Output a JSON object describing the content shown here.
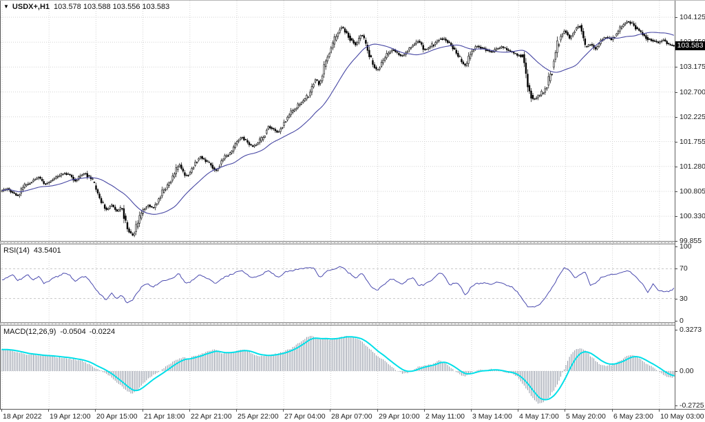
{
  "header": {
    "collapse_arrow": "▼",
    "symbol": "USDX+,H1",
    "ohlc": "103.578 103.588 103.556 103.583"
  },
  "indicators": {
    "rsi": {
      "name": "RSI(14)",
      "value": "43.5401"
    },
    "macd": {
      "name": "MACD(12,26,9)",
      "main_value": "-0.0504",
      "signal_value": "-0.0224"
    }
  },
  "colors": {
    "candle_outline": "#000000",
    "candle_bull_fill": "#ffffff",
    "candle_bear_fill": "#000000",
    "ma_line": "#4646a3",
    "rsi_line": "#4a4aae",
    "macd_histogram": "#8e94a2",
    "macd_signal": "#00dfe8",
    "grid": "#d2d2d2",
    "level_dash": "#c6c6c6",
    "badge_bg": "#000000",
    "badge_text": "#ffffff"
  },
  "chart_data": {
    "type": "candlestick",
    "symbol": "USDX+",
    "timeframe": "H1",
    "grid": "dotted",
    "legend_position": "none",
    "x_ticks": [
      "18 Apr 2022",
      "19 Apr 12:00",
      "20 Apr 15:00",
      "21 Apr 18:00",
      "22 Apr 21:00",
      "25 Apr 22:00",
      "27 Apr 04:00",
      "28 Apr 07:00",
      "29 Apr 10:00",
      "2 May 11:00",
      "3 May 14:00",
      "4 May 17:00",
      "5 May 20:00",
      "6 May 23:00",
      "10 May 03:00"
    ],
    "panels": [
      {
        "id": "price",
        "type": "candlestick",
        "ylim": [
          99.86,
          104.44
        ],
        "y_tick_labels": [
          "104.125",
          "103.650",
          "103.175",
          "102.700",
          "102.225",
          "101.755",
          "101.280",
          "100.805",
          "100.330",
          "99.855"
        ],
        "current_label": "103.583",
        "current_value": 103.583,
        "ma_period": 30,
        "interp_per_point": 3,
        "closes": [
          100.82,
          100.86,
          100.78,
          100.72,
          100.88,
          100.95,
          101.02,
          101.08,
          100.95,
          100.98,
          101.05,
          101.1,
          101.15,
          101.12,
          101.0,
          101.1,
          101.15,
          101.05,
          100.85,
          100.6,
          100.45,
          100.55,
          100.42,
          100.5,
          100.1,
          99.95,
          100.18,
          100.45,
          100.55,
          100.48,
          100.65,
          100.82,
          100.95,
          101.12,
          101.33,
          101.1,
          101.15,
          101.35,
          101.48,
          101.38,
          101.32,
          101.18,
          101.38,
          101.48,
          101.55,
          101.75,
          101.85,
          101.75,
          101.65,
          101.72,
          101.8,
          102.05,
          102.0,
          101.92,
          102.1,
          102.25,
          102.35,
          102.45,
          102.55,
          102.65,
          102.95,
          102.85,
          103.25,
          103.5,
          103.72,
          103.95,
          103.85,
          103.7,
          103.6,
          103.82,
          103.55,
          103.25,
          103.1,
          103.28,
          103.42,
          103.52,
          103.42,
          103.38,
          103.52,
          103.6,
          103.68,
          103.5,
          103.55,
          103.62,
          103.72,
          103.7,
          103.62,
          103.48,
          103.3,
          103.18,
          103.45,
          103.58,
          103.55,
          103.5,
          103.45,
          103.52,
          103.56,
          103.5,
          103.45,
          103.4,
          103.42,
          102.78,
          102.55,
          102.62,
          102.7,
          102.92,
          103.35,
          103.72,
          103.88,
          103.72,
          103.9,
          103.98,
          103.55,
          103.62,
          103.52,
          103.68,
          103.75,
          103.7,
          103.82,
          103.95,
          104.05,
          104.0,
          103.9,
          103.8,
          103.72,
          103.68,
          103.64,
          103.7,
          103.6,
          103.583
        ]
      },
      {
        "id": "rsi",
        "type": "line",
        "ylim": [
          -1.8,
          102.8
        ],
        "y_tick_labels": [
          "100",
          "70",
          "30",
          "0"
        ],
        "levels": [
          70,
          30
        ],
        "current_value": 43.5401,
        "values": [
          55,
          58,
          62,
          54,
          58,
          62,
          55,
          60,
          50,
          53,
          58,
          61,
          64,
          62,
          53,
          58,
          60,
          52,
          42,
          35,
          28,
          38,
          30,
          34,
          24,
          27,
          38,
          47,
          50,
          45,
          50,
          54,
          56,
          58,
          64,
          52,
          51,
          57,
          62,
          58,
          55,
          50,
          56,
          60,
          62,
          66,
          68,
          63,
          58,
          60,
          62,
          68,
          64,
          58,
          64,
          67,
          68,
          70,
          71,
          72,
          70,
          58,
          65,
          68,
          70,
          73,
          68,
          62,
          57,
          65,
          55,
          45,
          40,
          47,
          53,
          57,
          52,
          50,
          56,
          58,
          47,
          49,
          52,
          58,
          65,
          60,
          47,
          52,
          47,
          34,
          45,
          51,
          50,
          51,
          49,
          52,
          51,
          48,
          45,
          38,
          28,
          19,
          18,
          20,
          28,
          38,
          48,
          62,
          71,
          68,
          57,
          62,
          66,
          48,
          51,
          58,
          61,
          62,
          63,
          65,
          68,
          64,
          56,
          50,
          38,
          50,
          41,
          39,
          40,
          43.5
        ]
      },
      {
        "id": "macd",
        "type": "histogram+line",
        "ylim": [
          -0.3,
          0.36
        ],
        "y_tick_labels": [
          "0.3273",
          "0.00",
          "-0.2725"
        ],
        "signal_period": 9,
        "main_current": -0.0504,
        "signal_current": -0.0224,
        "values": [
          0.17,
          0.17,
          0.16,
          0.15,
          0.14,
          0.13,
          0.13,
          0.125,
          0.12,
          0.12,
          0.115,
          0.11,
          0.105,
          0.1,
          0.09,
          0.085,
          0.07,
          0.05,
          0.02,
          0.005,
          -0.02,
          -0.05,
          -0.09,
          -0.12,
          -0.16,
          -0.18,
          -0.15,
          -0.1,
          -0.06,
          -0.03,
          -0.01,
          0.02,
          0.05,
          0.08,
          0.1,
          0.11,
          0.1,
          0.12,
          0.13,
          0.15,
          0.16,
          0.17,
          0.14,
          0.14,
          0.15,
          0.16,
          0.17,
          0.16,
          0.14,
          0.12,
          0.12,
          0.12,
          0.13,
          0.14,
          0.15,
          0.17,
          0.19,
          0.22,
          0.25,
          0.28,
          0.27,
          0.25,
          0.26,
          0.25,
          0.26,
          0.27,
          0.28,
          0.27,
          0.26,
          0.24,
          0.2,
          0.16,
          0.12,
          0.1,
          0.06,
          0.03,
          0.0,
          -0.02,
          -0.01,
          0.01,
          0.035,
          0.045,
          0.05,
          0.06,
          0.085,
          0.07,
          0.03,
          0.0,
          -0.035,
          -0.04,
          -0.015,
          0.005,
          0.01,
          0.005,
          0.015,
          0.01,
          -0.005,
          -0.015,
          -0.02,
          -0.05,
          -0.1,
          -0.16,
          -0.22,
          -0.26,
          -0.24,
          -0.21,
          -0.15,
          -0.07,
          0.02,
          0.12,
          0.17,
          0.185,
          0.16,
          0.12,
          0.08,
          0.05,
          0.04,
          0.05,
          0.07,
          0.09,
          0.12,
          0.13,
          0.11,
          0.08,
          0.05,
          0.03,
          0.0,
          -0.03,
          -0.05,
          -0.05
        ]
      }
    ]
  }
}
